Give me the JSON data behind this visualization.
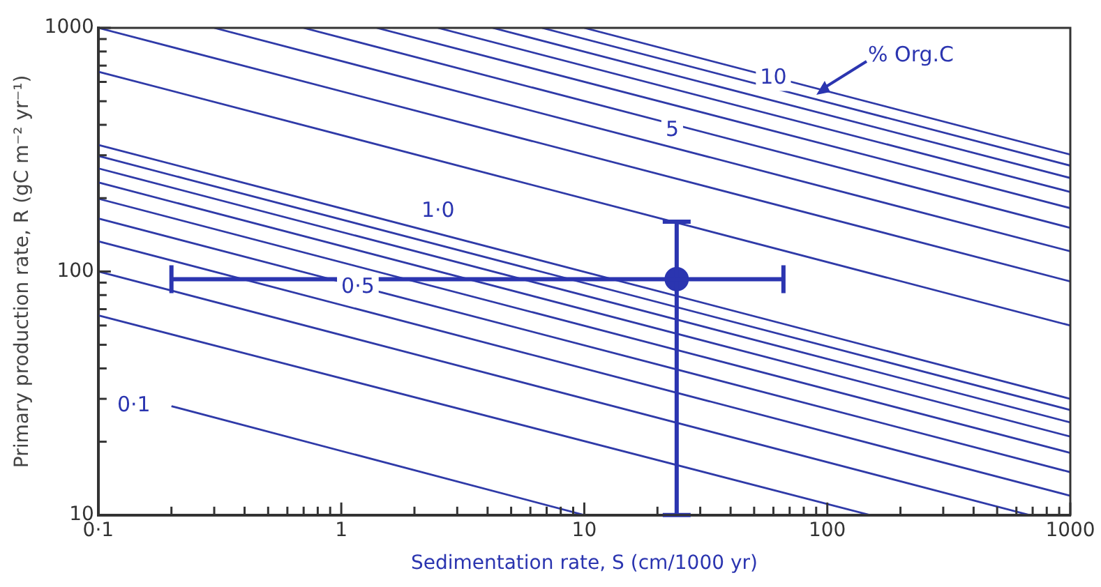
{
  "chart_data": {
    "type": "line",
    "xlabel": "Sedimentation rate, S (cm/1000 yr)",
    "ylabel": "Primary production rate, R (gC m⁻² yr⁻¹)",
    "xlim": [
      0.1,
      1000
    ],
    "ylim": [
      10,
      1000
    ],
    "log": "xy",
    "grid": false,
    "legend": false,
    "marker": "none",
    "line_style": "solid",
    "xticks": [
      {
        "value": 0.1,
        "label": "0·1"
      },
      {
        "value": 0.2,
        "label": null
      },
      {
        "value": 0.3,
        "label": null
      },
      {
        "value": 0.4,
        "label": null
      },
      {
        "value": 0.5,
        "label": null
      },
      {
        "value": 0.6,
        "label": null
      },
      {
        "value": 0.7,
        "label": null
      },
      {
        "value": 0.8,
        "label": null
      },
      {
        "value": 0.9,
        "label": null
      },
      1,
      {
        "value": 2,
        "label": null
      },
      {
        "value": 3,
        "label": null
      },
      {
        "value": 4,
        "label": null
      },
      {
        "value": 5,
        "label": null
      },
      {
        "value": 6,
        "label": null
      },
      {
        "value": 7,
        "label": null
      },
      {
        "value": 8,
        "label": null
      },
      {
        "value": 9,
        "label": null
      },
      10,
      {
        "value": 20,
        "label": null
      },
      {
        "value": 30,
        "label": null
      },
      {
        "value": 40,
        "label": null
      },
      {
        "value": 50,
        "label": null
      },
      {
        "value": 60,
        "label": null
      },
      {
        "value": 70,
        "label": null
      },
      {
        "value": 80,
        "label": null
      },
      {
        "value": 90,
        "label": null
      },
      100,
      {
        "value": 200,
        "label": null
      },
      {
        "value": 300,
        "label": null
      },
      {
        "value": 400,
        "label": null
      },
      {
        "value": 500,
        "label": null
      },
      {
        "value": 600,
        "label": null
      },
      {
        "value": 700,
        "label": null
      },
      {
        "value": 800,
        "label": null
      },
      {
        "value": 900,
        "label": null
      },
      1000
    ],
    "yticks": [
      10,
      {
        "value": 20,
        "label": null
      },
      {
        "value": 30,
        "label": null
      },
      {
        "value": 40,
        "label": null
      },
      {
        "value": 50,
        "label": null
      },
      {
        "value": 60,
        "label": null
      },
      {
        "value": 70,
        "label": null
      },
      {
        "value": 80,
        "label": null
      },
      {
        "value": 90,
        "label": null
      },
      100,
      {
        "value": 200,
        "label": null
      },
      {
        "value": 300,
        "label": null
      },
      {
        "value": 400,
        "label": null
      },
      {
        "value": 500,
        "label": null
      },
      {
        "value": 600,
        "label": null
      },
      {
        "value": 700,
        "label": null
      },
      {
        "value": 800,
        "label": null
      },
      {
        "value": 900,
        "label": null
      },
      1000
    ],
    "series": [
      {
        "color": "#2f3aa8",
        "x": [
          0.2,
          10
        ],
        "values": [
          28,
          10
        ]
      },
      {
        "color": "#2f3aa8",
        "x": [
          0.1,
          150
        ],
        "values": [
          66,
          10
        ]
      },
      {
        "color": "#2f3aa8",
        "x": [
          0.1,
          680
        ],
        "values": [
          100,
          10
        ]
      },
      {
        "color": "#2f3aa8",
        "x": [
          0.1,
          1000
        ],
        "values": [
          133,
          12
        ]
      },
      {
        "color": "#2f3aa8",
        "x": [
          0.1,
          1000
        ],
        "values": [
          165,
          15
        ]
      },
      {
        "color": "#2f3aa8",
        "x": [
          0.1,
          1000
        ],
        "values": [
          199,
          18
        ]
      },
      {
        "color": "#2f3aa8",
        "x": [
          0.1,
          1000
        ],
        "values": [
          232,
          21
        ]
      },
      {
        "color": "#2f3aa8",
        "x": [
          0.1,
          1000
        ],
        "values": [
          265,
          24
        ]
      },
      {
        "color": "#2f3aa8",
        "x": [
          0.1,
          1000
        ],
        "values": [
          298,
          27
        ]
      },
      {
        "color": "#2f3aa8",
        "x": [
          0.1,
          1000
        ],
        "values": [
          331,
          30
        ]
      },
      {
        "color": "#2f3aa8",
        "x": [
          0.1,
          1000
        ],
        "values": [
          661,
          60
        ]
      },
      {
        "color": "#2f3aa8",
        "x": [
          0.1,
          1000
        ],
        "values": [
          1000,
          91
        ]
      },
      {
        "color": "#2f3aa8",
        "x": [
          0.3,
          1000
        ],
        "values": [
          1000,
          121
        ]
      },
      {
        "color": "#2f3aa8",
        "x": [
          0.7,
          1000
        ],
        "values": [
          1000,
          151
        ]
      },
      {
        "color": "#2f3aa8",
        "x": [
          1.4,
          1000
        ],
        "values": [
          1000,
          182
        ]
      },
      {
        "color": "#2f3aa8",
        "x": [
          2.5,
          1000
        ],
        "values": [
          1000,
          212
        ]
      },
      {
        "color": "#2f3aa8",
        "x": [
          4.2,
          1000
        ],
        "values": [
          1000,
          242
        ]
      },
      {
        "color": "#2f3aa8",
        "x": [
          6.7,
          1000
        ],
        "values": [
          1000,
          272
        ]
      },
      {
        "color": "#2f3aa8",
        "x": [
          10,
          1000
        ],
        "values": [
          1000,
          302
        ]
      },
      {
        "type": "scatter",
        "marker": "circle",
        "color": "#2b35b0",
        "x": [
          24
        ],
        "values": [
          93
        ],
        "errors": [
          [
            10,
            160
          ]
        ],
        "xerrors": [
          [
            0.2,
            66
          ]
        ]
      }
    ],
    "annotations": [
      {
        "text": "0·1",
        "x": 0.14,
        "y": 28
      },
      {
        "text": "0·5",
        "x": 1.17,
        "y": 86
      },
      {
        "text": "1·0",
        "x": 2.5,
        "y": 176
      },
      {
        "text": "5",
        "x": 23,
        "y": 380
      },
      {
        "text": "10",
        "x": 60,
        "y": 620
      },
      "% Org.C"
    ]
  }
}
